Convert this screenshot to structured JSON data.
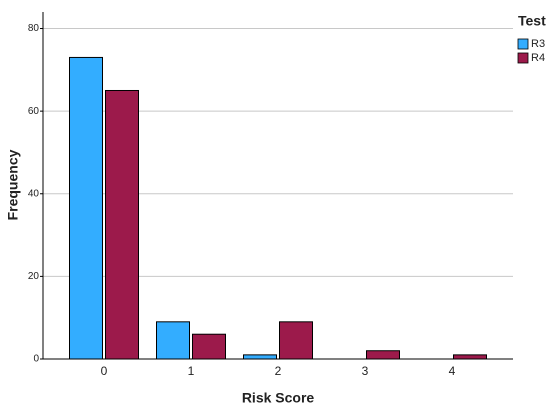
{
  "chart_data": {
    "type": "bar",
    "x_label": "Risk Score",
    "y_label": "Frequency",
    "legend_title": "Test",
    "legend_position": "right",
    "categories": [
      "0",
      "1",
      "2",
      "3",
      "4"
    ],
    "series": [
      {
        "name": "R3",
        "color": "#33adff",
        "values": [
          73,
          9,
          1,
          0,
          0
        ]
      },
      {
        "name": "R4",
        "color": "#9c1a4b",
        "values": [
          65,
          6,
          9,
          2,
          1
        ]
      }
    ],
    "ylim": [
      0,
      84
    ],
    "yticks": [
      0,
      20,
      40,
      60,
      80
    ],
    "grid": true
  }
}
